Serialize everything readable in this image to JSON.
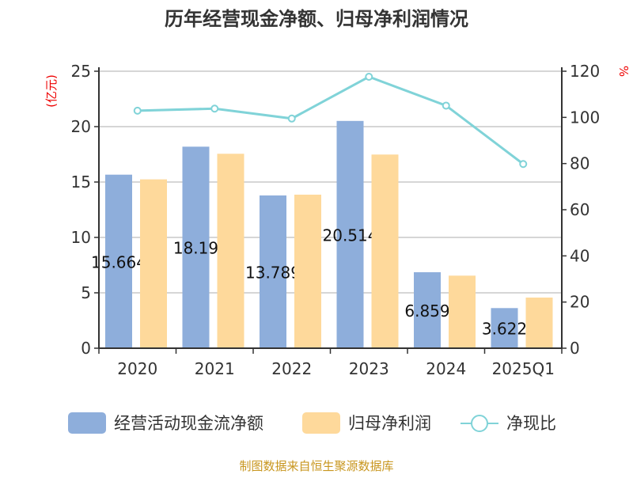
{
  "chart_data": {
    "type": "bar",
    "title": "历年经营现金净额、归母净利润情况",
    "categories": [
      "2020",
      "2021",
      "2022",
      "2023",
      "2024",
      "2025Q1"
    ],
    "ylabel": "(亿元)",
    "y2label": "%",
    "ylim": [
      0,
      25
    ],
    "yticks": [
      0,
      5,
      10,
      15,
      20,
      25
    ],
    "y2lim": [
      0,
      120
    ],
    "y2ticks": [
      0,
      20,
      40,
      60,
      80,
      100,
      120
    ],
    "grid": true,
    "legend_position": "bottom",
    "series": [
      {
        "name": "经营活动现金流净额",
        "type": "bar",
        "axis": "left",
        "color": "#8eaedb",
        "values": [
          15.664,
          18.19,
          13.789,
          20.514,
          6.859,
          3.622
        ],
        "labels": [
          "15.664",
          "18.19",
          "13.789",
          "20.514",
          "6.859",
          "3.622"
        ]
      },
      {
        "name": "归母净利润",
        "type": "bar",
        "axis": "left",
        "color": "#fed99b",
        "values": [
          15.24,
          17.55,
          13.86,
          17.48,
          6.55,
          4.57
        ]
      },
      {
        "name": "净现比",
        "type": "line",
        "axis": "right",
        "color": "#80d3d8",
        "values": [
          102.9,
          103.8,
          99.5,
          117.6,
          105.1,
          79.8
        ]
      }
    ],
    "source": "制图数据来自恒生聚源数据库"
  }
}
